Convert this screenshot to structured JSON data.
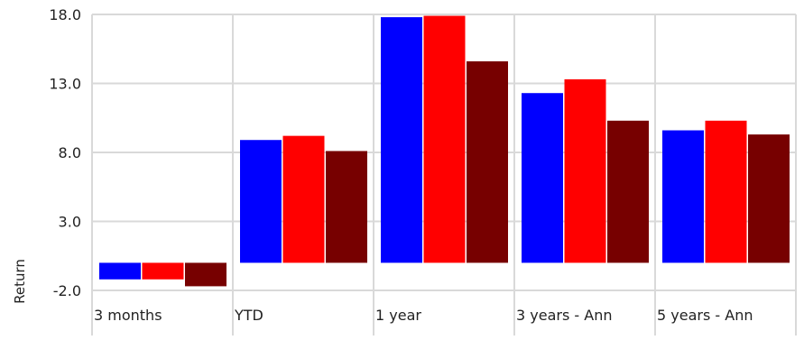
{
  "chart_data": {
    "type": "bar",
    "title": "",
    "xlabel": "",
    "ylabel": "Return",
    "ylim": [
      -2.0,
      18.0
    ],
    "yticks": [
      "-2.0",
      "3.0",
      "8.0",
      "13.0",
      "18.0"
    ],
    "grid": true,
    "legend": "none",
    "categories": [
      "3 months",
      "YTD",
      "1 year",
      "3 years - Ann",
      "5 years - Ann"
    ],
    "series": [
      {
        "color": "#0000ff",
        "values": [
          -1.2,
          8.9,
          17.8,
          12.3,
          9.6
        ]
      },
      {
        "color": "#ff0000",
        "values": [
          -1.2,
          9.2,
          17.9,
          13.3,
          10.3
        ]
      },
      {
        "color": "#770000",
        "values": [
          -1.7,
          8.1,
          14.6,
          10.3,
          9.3
        ]
      }
    ]
  }
}
